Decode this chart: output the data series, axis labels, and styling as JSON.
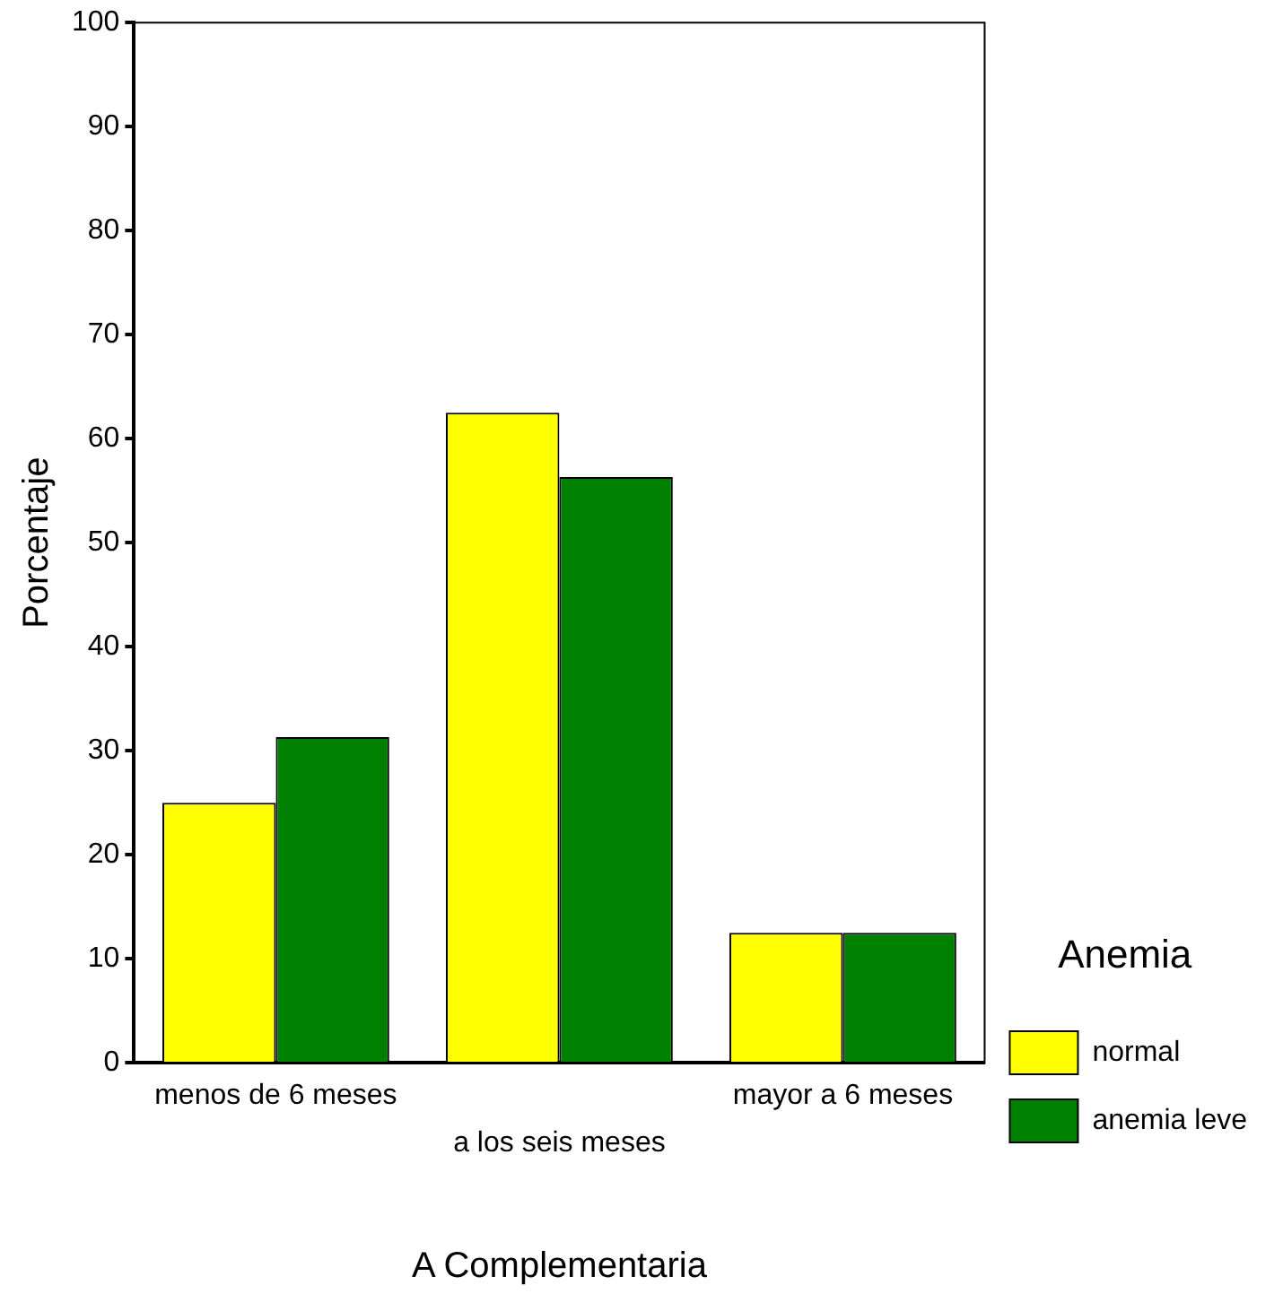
{
  "chart_data": {
    "type": "bar",
    "xlabel": "a los seis meses",
    "ylabel": "Porcentaje",
    "legend_title": "Anemia",
    "categories": [
      "menos de 6 meses",
      null,
      "mayor a 6 meses"
    ],
    "series": [
      {
        "name": "normal",
        "color": "#ffff00",
        "values": [
          25,
          62.5,
          12.5
        ]
      },
      {
        "name": "anemia leve",
        "color": "#008000",
        "values": [
          31.3,
          56.3,
          12.5
        ]
      }
    ],
    "ylim": [
      0,
      100
    ],
    "yticks": [
      0,
      10,
      20,
      30,
      40,
      50,
      60,
      70,
      80,
      90,
      100
    ],
    "grid": false,
    "legend": "right",
    "annotations": [
      "A Complementaria"
    ]
  }
}
